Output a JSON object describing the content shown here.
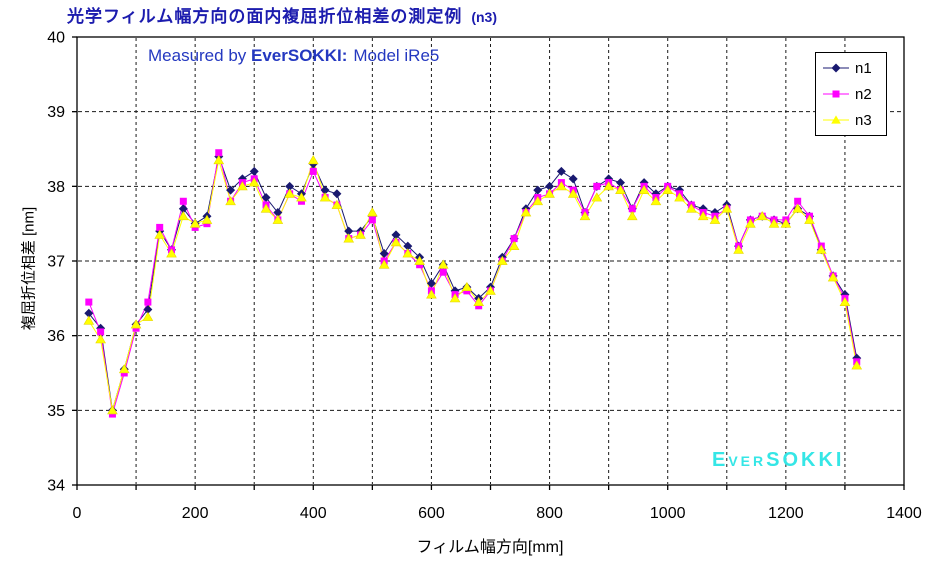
{
  "title": {
    "text": "光学フィルム幅方向の面内複屈折位相差の測定例",
    "suffix": "(n3)",
    "color": "#1c1cae"
  },
  "subtitle": {
    "prefix": "Measured by ",
    "brand": "EverSOKKI:",
    "suffix": "Model iRe5",
    "color": "#2438c0"
  },
  "watermark": {
    "text": "EverSOKKI",
    "color": "#35e6e6"
  },
  "chart_data": {
    "type": "line",
    "title": "光学フィルム幅方向の面内複屈折位相差の測定例 (n3)",
    "xlabel": "フィルム幅方向[mm]",
    "ylabel": "複屈折位相差 [nm]",
    "xlim": [
      0,
      1400
    ],
    "ylim": [
      34,
      40
    ],
    "xticks": [
      0,
      200,
      400,
      600,
      800,
      1000,
      1200,
      1400
    ],
    "yticks": [
      34,
      35,
      36,
      37,
      38,
      39,
      40
    ],
    "x_minor_step": 100,
    "grid": "dashed",
    "legend_position": "top-right",
    "x": [
      20,
      40,
      60,
      80,
      100,
      120,
      140,
      160,
      180,
      200,
      220,
      240,
      260,
      280,
      300,
      320,
      340,
      360,
      380,
      400,
      420,
      440,
      460,
      480,
      500,
      520,
      540,
      560,
      580,
      600,
      620,
      640,
      660,
      680,
      700,
      720,
      740,
      760,
      780,
      800,
      820,
      840,
      860,
      880,
      900,
      920,
      940,
      960,
      980,
      1000,
      1020,
      1040,
      1060,
      1080,
      1100,
      1120,
      1140,
      1160,
      1180,
      1200,
      1220,
      1240,
      1260,
      1280,
      1300,
      1320
    ],
    "series": [
      {
        "name": "n1",
        "color": "#191970",
        "marker": "diamond",
        "values": [
          36.3,
          36.1,
          35.0,
          35.55,
          36.15,
          36.35,
          37.4,
          37.15,
          37.7,
          37.5,
          37.6,
          38.4,
          37.95,
          38.1,
          38.2,
          37.85,
          37.65,
          38.0,
          37.9,
          38.3,
          37.95,
          37.9,
          37.4,
          37.4,
          37.6,
          37.1,
          37.35,
          37.2,
          37.05,
          36.7,
          36.95,
          36.6,
          36.65,
          36.5,
          36.65,
          37.05,
          37.3,
          37.7,
          37.95,
          38.0,
          38.2,
          38.1,
          37.65,
          38.0,
          38.1,
          38.05,
          37.7,
          38.05,
          37.9,
          38.0,
          37.95,
          37.75,
          37.7,
          37.65,
          37.75,
          37.2,
          37.55,
          37.6,
          37.55,
          37.5,
          37.7,
          37.6,
          37.15,
          36.8,
          36.55,
          35.7
        ]
      },
      {
        "name": "n2",
        "color": "#ff00ff",
        "marker": "square",
        "values": [
          36.45,
          36.05,
          34.95,
          35.5,
          36.1,
          36.45,
          37.45,
          37.15,
          37.8,
          37.45,
          37.5,
          38.45,
          37.8,
          38.05,
          38.1,
          37.75,
          37.55,
          37.9,
          37.8,
          38.2,
          37.85,
          37.75,
          37.3,
          37.35,
          37.55,
          37.0,
          37.25,
          37.1,
          36.95,
          36.6,
          36.85,
          36.55,
          36.6,
          36.4,
          36.6,
          37.0,
          37.3,
          37.65,
          37.85,
          37.9,
          38.05,
          37.95,
          37.65,
          38.0,
          38.05,
          37.95,
          37.7,
          38.0,
          37.85,
          38.0,
          37.9,
          37.75,
          37.65,
          37.6,
          37.7,
          37.2,
          37.55,
          37.6,
          37.55,
          37.55,
          37.8,
          37.6,
          37.2,
          36.8,
          36.5,
          35.65
        ]
      },
      {
        "name": "n3",
        "color": "#ffff00",
        "marker": "triangle",
        "values": [
          36.2,
          35.95,
          35.0,
          35.55,
          36.15,
          36.25,
          37.35,
          37.1,
          37.6,
          37.5,
          37.55,
          38.35,
          37.8,
          38.0,
          38.05,
          37.7,
          37.55,
          37.9,
          37.85,
          38.35,
          37.85,
          37.75,
          37.3,
          37.35,
          37.65,
          36.95,
          37.25,
          37.1,
          37.0,
          36.55,
          36.95,
          36.5,
          36.65,
          36.45,
          36.6,
          37.0,
          37.2,
          37.65,
          37.8,
          37.9,
          38.0,
          37.9,
          37.6,
          37.85,
          38.0,
          37.95,
          37.6,
          37.95,
          37.8,
          37.95,
          37.85,
          37.7,
          37.6,
          37.55,
          37.7,
          37.15,
          37.5,
          37.6,
          37.5,
          37.5,
          37.7,
          37.55,
          37.15,
          36.78,
          36.45,
          35.6
        ]
      }
    ]
  }
}
